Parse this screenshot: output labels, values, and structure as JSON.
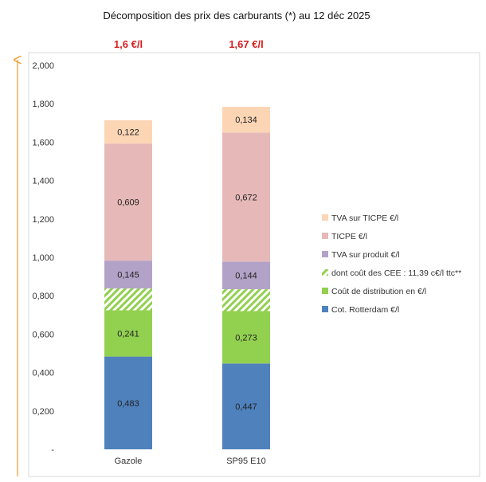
{
  "chart_data": {
    "type": "bar",
    "stacked": true,
    "title": "Décomposition des prix des carburants (*) au 12 déc 2025",
    "categories": [
      "Gazole",
      "SP95 E10"
    ],
    "totals_labels": [
      "1,6 €/l",
      "1,67 €/l"
    ],
    "ylim": [
      0,
      2.0
    ],
    "yticks": [
      "-",
      "0,200",
      "0,400",
      "0,600",
      "0,800",
      "1,000",
      "1,200",
      "1,400",
      "1,600",
      "1,800",
      "2,000"
    ],
    "grid": false,
    "legend_position": "right",
    "series": [
      {
        "name": "Cot. Rotterdam €/l",
        "values": [
          0.483,
          0.447
        ],
        "labels": [
          "0,483",
          "0,447"
        ],
        "color": "#4f81bd"
      },
      {
        "name": "Coût de distribution en €/l",
        "values": [
          0.241,
          0.273
        ],
        "labels": [
          "0,241",
          "0,273"
        ],
        "color": "#92d050"
      },
      {
        "name": "dont coût des CEE : 11,39 c€/l ttc**",
        "values": [
          0.1139,
          0.1139
        ],
        "labels": [
          "",
          ""
        ],
        "color": "#92d050",
        "pattern": "hatch"
      },
      {
        "name": "TVA sur produit €/l",
        "values": [
          0.145,
          0.144
        ],
        "labels": [
          "0,145",
          "0,144"
        ],
        "color": "#b3a2c7"
      },
      {
        "name": "TICPE €/l",
        "values": [
          0.609,
          0.672
        ],
        "labels": [
          "0,609",
          "0,672"
        ],
        "color": "#e6b9b8"
      },
      {
        "name": "TVA sur TICPE €/l",
        "values": [
          0.122,
          0.134
        ],
        "labels": [
          "0,122",
          "0,134"
        ],
        "color": "#fcd5b5"
      }
    ],
    "legend_order": [
      5,
      4,
      3,
      2,
      1,
      0
    ]
  }
}
